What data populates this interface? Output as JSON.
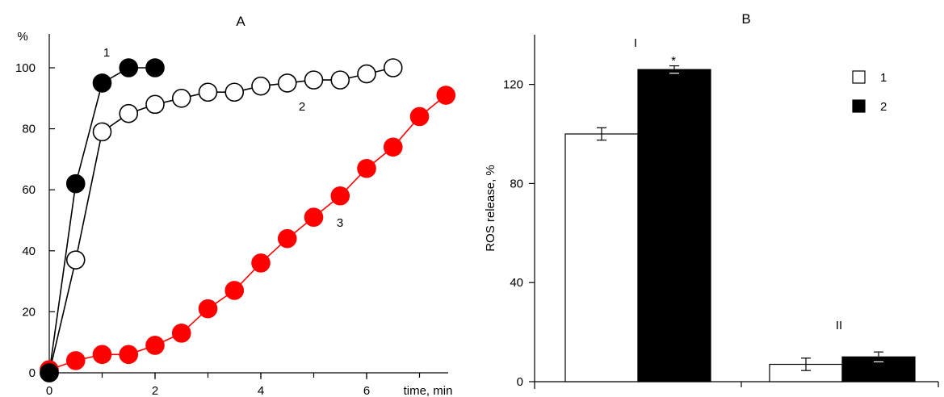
{
  "chart_data": [
    {
      "panel": "A",
      "type": "line",
      "title": "A",
      "xlabel": "time, min",
      "ylabel": "%",
      "xlim": [
        0,
        7.5
      ],
      "ylim": [
        0,
        100
      ],
      "xticks": [
        0,
        2,
        4,
        6
      ],
      "yticks": [
        0,
        20,
        40,
        60,
        80,
        100
      ],
      "grid": false,
      "series": [
        {
          "name": "1",
          "marker": "filled",
          "color": "#000000",
          "x": [
            0,
            0.5,
            1.0,
            1.5,
            2.0
          ],
          "y": [
            0,
            62,
            95,
            100,
            100
          ]
        },
        {
          "name": "2",
          "marker": "open",
          "color": "#000000",
          "x": [
            0,
            0.5,
            1.0,
            1.5,
            2.0,
            2.5,
            3.0,
            3.5,
            4.0,
            4.5,
            5.0,
            5.5,
            6.0,
            6.5
          ],
          "y": [
            0,
            37,
            79,
            85,
            88,
            90,
            92,
            92,
            94,
            95,
            96,
            96,
            98,
            100
          ]
        },
        {
          "name": "3",
          "marker": "filled",
          "color": "#ff0000",
          "x": [
            0,
            0.5,
            1.0,
            1.5,
            2.0,
            2.5,
            3.0,
            3.5,
            4.0,
            4.5,
            5.0,
            5.5,
            6.0,
            6.5,
            7.0,
            7.5
          ],
          "y": [
            1,
            4,
            6,
            6,
            9,
            13,
            21,
            27,
            36,
            44,
            51,
            58,
            67,
            74,
            84,
            91
          ]
        }
      ]
    },
    {
      "panel": "B",
      "type": "bar",
      "title": "B",
      "xlabel": "",
      "ylabel": "ROS release, %",
      "ylim": [
        0,
        140
      ],
      "yticks": [
        0,
        40,
        80,
        120
      ],
      "grid": false,
      "legend_position": "top-right",
      "categories": [
        "I",
        "II"
      ],
      "series": [
        {
          "name": "1",
          "color": "#ffffff",
          "values": [
            100,
            7
          ],
          "errors": [
            2.5,
            2.5
          ]
        },
        {
          "name": "2",
          "color": "#000000",
          "values": [
            126,
            10
          ],
          "errors": [
            1.5,
            2
          ]
        }
      ],
      "annotations": [
        {
          "category": "I",
          "series": "2",
          "text": "*"
        }
      ]
    }
  ]
}
